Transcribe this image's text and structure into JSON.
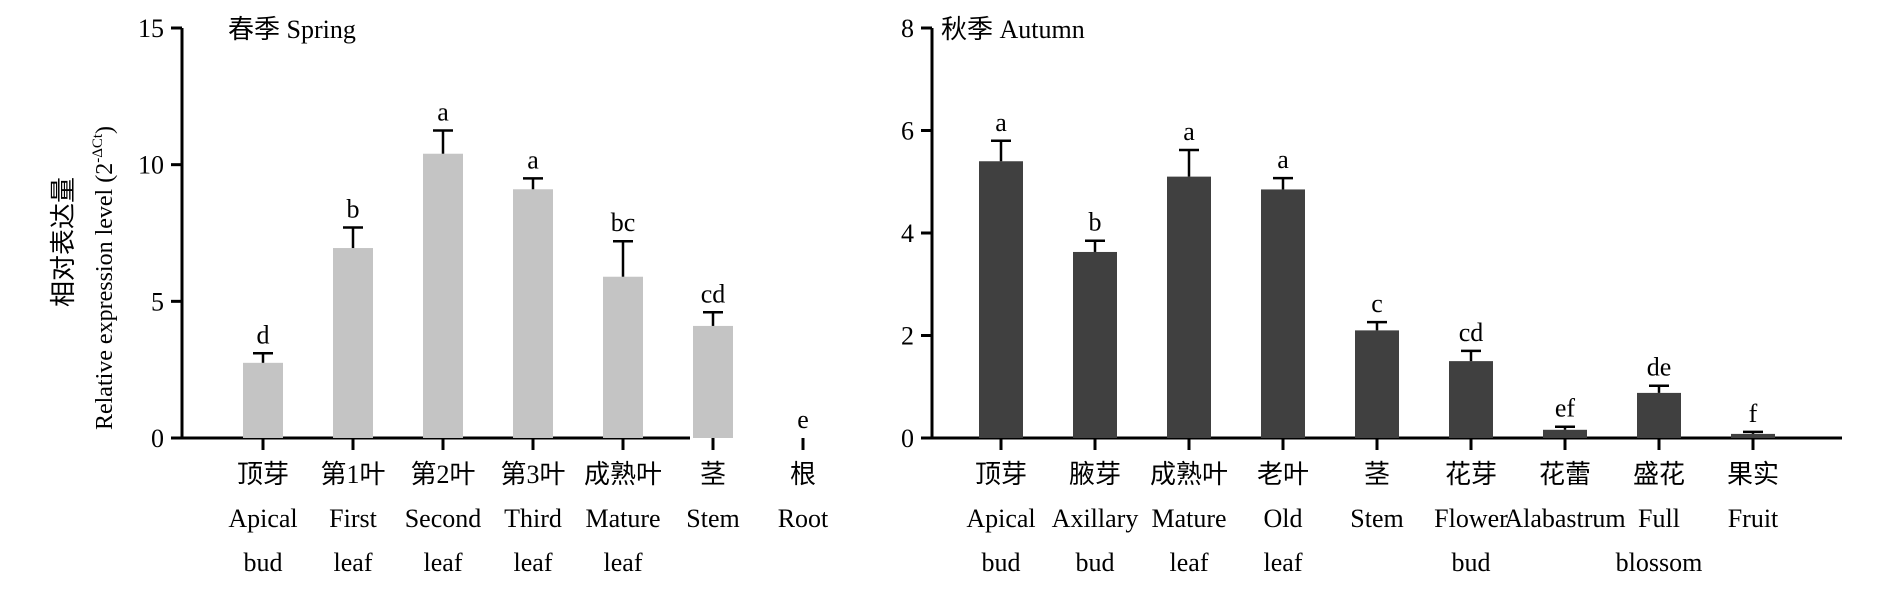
{
  "y_axis_label": {
    "zh": "相对表达量",
    "en_prefix": "Relative expression level (2",
    "en_superscript": "-ΔCt",
    "en_suffix": ")"
  },
  "chart_data": [
    {
      "type": "bar",
      "title": "春季 Spring",
      "color": "#c4c4c4",
      "ylim": [
        0,
        15
      ],
      "yticks": [
        "0",
        "5",
        "10",
        "15"
      ],
      "categories": [
        [
          "顶芽",
          "Apical",
          "bud"
        ],
        [
          "第1叶",
          "First",
          "leaf"
        ],
        [
          "第2叶",
          "Second",
          "leaf"
        ],
        [
          "第3叶",
          "Third",
          "leaf"
        ],
        [
          "成熟叶",
          "Mature",
          "leaf"
        ],
        [
          "茎",
          "Stem"
        ],
        [
          "根",
          "Root"
        ]
      ],
      "values": [
        2.75,
        6.95,
        10.4,
        9.1,
        5.9,
        4.1,
        0
      ],
      "errors": [
        0.35,
        0.75,
        0.85,
        0.4,
        1.3,
        0.5,
        0
      ],
      "significance": [
        "d",
        "b",
        "a",
        "a",
        "bc",
        "cd",
        "e"
      ]
    },
    {
      "type": "bar",
      "title": "秋季 Autumn",
      "color": "#404040",
      "ylim": [
        0,
        8
      ],
      "yticks": [
        "0",
        "2",
        "4",
        "6",
        "8"
      ],
      "categories": [
        [
          "顶芽",
          "Apical",
          "bud"
        ],
        [
          "腋芽",
          "Axillary",
          "bud"
        ],
        [
          "成熟叶",
          "Mature",
          "leaf"
        ],
        [
          "老叶",
          "Old",
          "leaf"
        ],
        [
          "茎",
          "Stem"
        ],
        [
          "花芽",
          "Flower",
          "bud"
        ],
        [
          "花蕾",
          "Alabastrum"
        ],
        [
          "盛花",
          "Full",
          "blossom"
        ],
        [
          "果实",
          "Fruit"
        ]
      ],
      "values": [
        5.4,
        3.63,
        5.1,
        4.85,
        2.1,
        1.5,
        0.16,
        0.88,
        0.08
      ],
      "errors": [
        0.4,
        0.22,
        0.52,
        0.22,
        0.16,
        0.2,
        0.06,
        0.14,
        0.04
      ],
      "significance": [
        "a",
        "b",
        "a",
        "a",
        "c",
        "cd",
        "ef",
        "de",
        "f"
      ]
    }
  ]
}
